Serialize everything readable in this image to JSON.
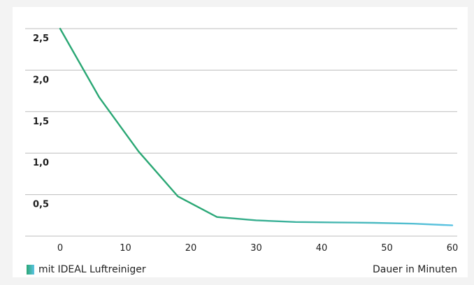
{
  "chart_data": {
    "type": "line",
    "title": "",
    "xlabel": "Dauer in Minuten",
    "ylabel": "",
    "xlim": [
      -5,
      60
    ],
    "ylim": [
      0,
      2.5
    ],
    "x_ticks": [
      0,
      10,
      20,
      30,
      40,
      50,
      60
    ],
    "x_tick_labels": [
      "0",
      "10",
      "20",
      "30",
      "40",
      "50",
      "60"
    ],
    "y_ticks": [
      0.5,
      1.0,
      1.5,
      2.0,
      2.5
    ],
    "y_tick_labels": [
      "0,5",
      "1,0",
      "1,5",
      "2,0",
      "2,5"
    ],
    "grid": true,
    "legend_position": "bottom-left",
    "colors": {
      "start": "#2aa774",
      "end": "#5bc3e4",
      "grid": "#bdbdbd"
    },
    "series": [
      {
        "name": "mit IDEAL Luftreiniger",
        "x": [
          0,
          6,
          12,
          18,
          24,
          30,
          36,
          42,
          48,
          54,
          60
        ],
        "y": [
          2.5,
          1.67,
          1.02,
          0.48,
          0.23,
          0.19,
          0.17,
          0.165,
          0.16,
          0.15,
          0.13
        ]
      }
    ]
  }
}
